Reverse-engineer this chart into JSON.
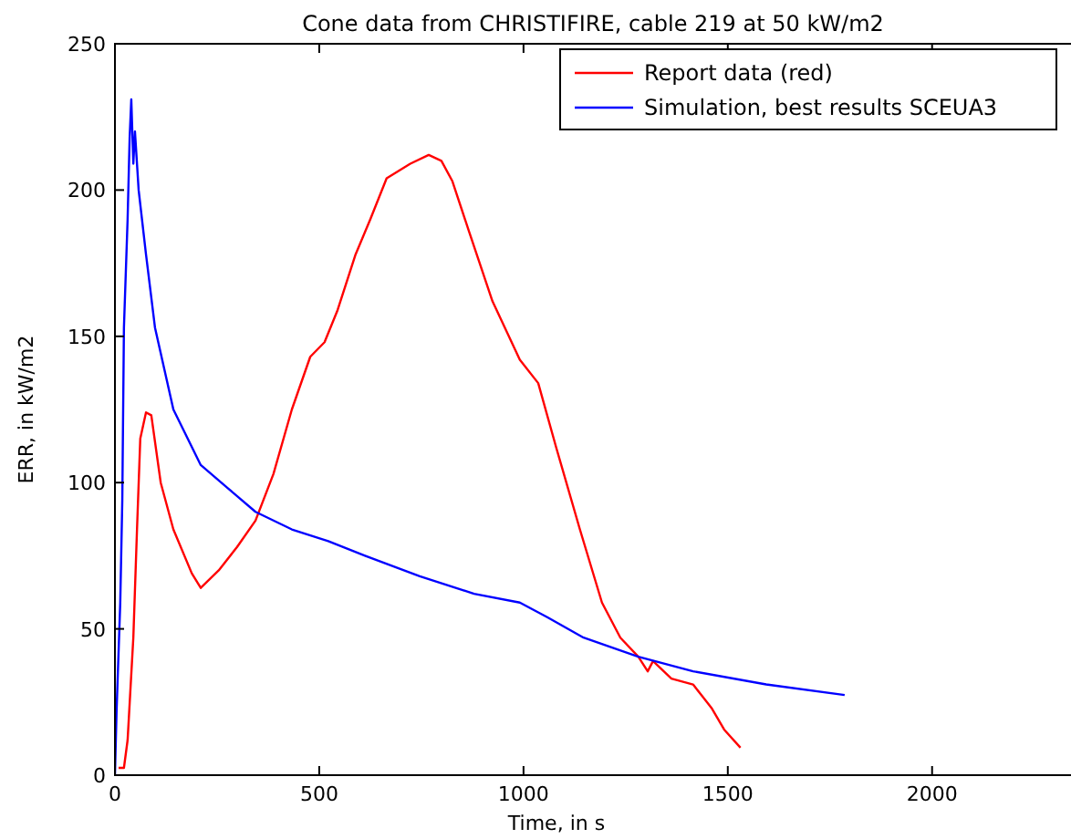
{
  "chart_data": {
    "type": "line",
    "title": "Cone data from CHRISTIFIRE, cable 219 at 50 kW/m2",
    "xlabel": "Time, in s",
    "ylabel": "ERR, in kW/m2",
    "xlim": [
      0,
      2340
    ],
    "xticks": [
      0,
      500,
      1000,
      1500,
      2000
    ],
    "ylim": [
      0,
      250
    ],
    "yticks": [
      0,
      50,
      100,
      150,
      200,
      250
    ],
    "grid": false,
    "legend": "top right",
    "line_style": "solid",
    "series": [
      {
        "name": "Report data (red)",
        "color": "#ff0000",
        "x": [
          9,
          22,
          31,
          45,
          54,
          62,
          76,
          89,
          112,
          143,
          188,
          210,
          254,
          299,
          344,
          388,
          433,
          478,
          513,
          545,
          589,
          625,
          665,
          723,
          768,
          799,
          826,
          871,
          924,
          991,
          1036,
          1080,
          1138,
          1192,
          1237,
          1281,
          1304,
          1317,
          1362,
          1415,
          1460,
          1491,
          1531
        ],
        "values": [
          2.5,
          2.5,
          12,
          47,
          84,
          115,
          124,
          123,
          100,
          84,
          69,
          64,
          70,
          78,
          87,
          103,
          125,
          143,
          148,
          159,
          178,
          190,
          204,
          209,
          212,
          210,
          203,
          184,
          162,
          142,
          134,
          112,
          84,
          59,
          47,
          40.5,
          35.5,
          39,
          33,
          31,
          23,
          15.6,
          9.4
        ]
      },
      {
        "name": "Simulation, best results SCEUA3",
        "color": "#0000ff",
        "x": [
          0,
          4,
          13,
          18,
          22,
          31,
          36,
          40,
          45,
          49,
          58,
          76,
          98,
          143,
          210,
          277,
          344,
          433,
          522,
          612,
          746,
          879,
          991,
          1058,
          1147,
          1281,
          1415,
          1594,
          1786
        ],
        "values": [
          0,
          22,
          59,
          94,
          153,
          190,
          218,
          231,
          209,
          220,
          200,
          178,
          153,
          125,
          106,
          98,
          90,
          84,
          80,
          75,
          68,
          62,
          59,
          54,
          47,
          40.5,
          35.5,
          31,
          27.4
        ]
      }
    ]
  }
}
